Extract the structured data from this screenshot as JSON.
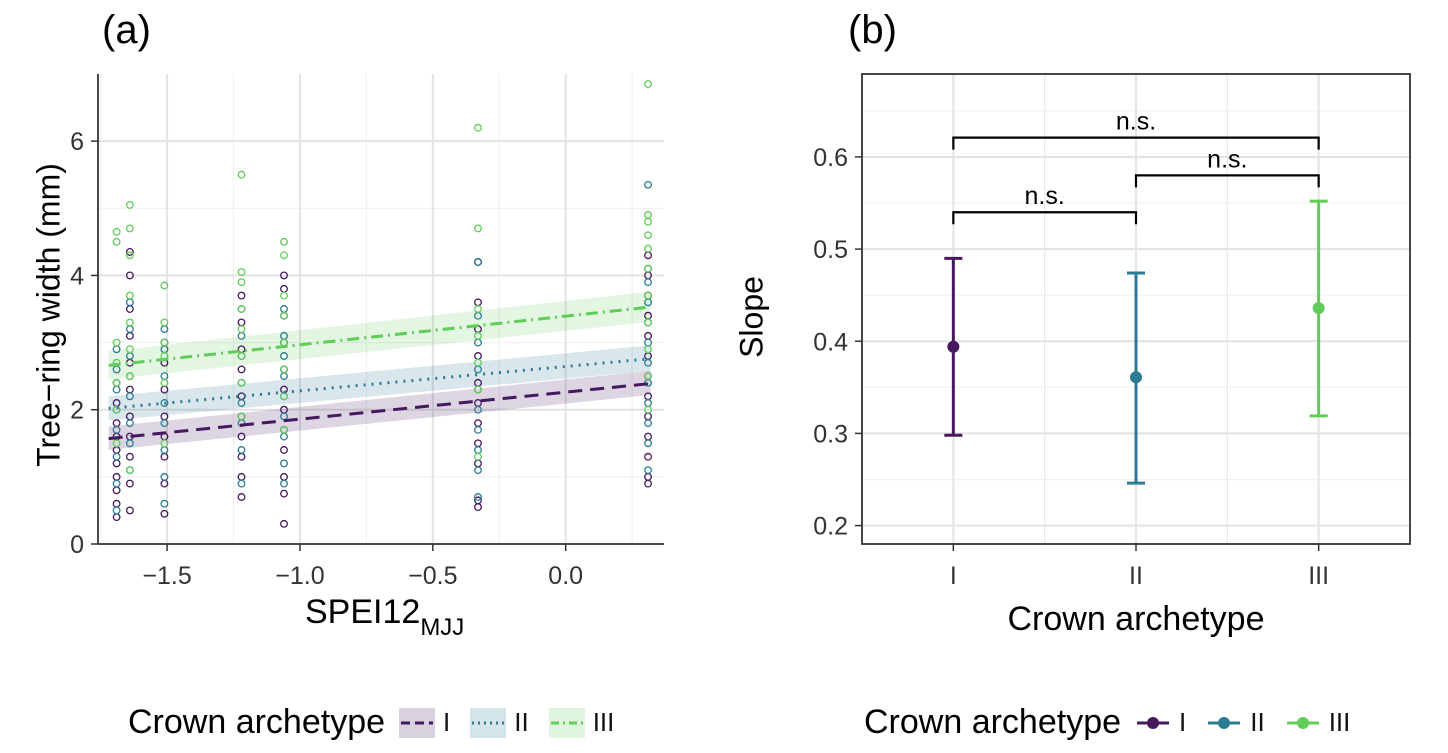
{
  "colors": {
    "I": "#45185f",
    "II": "#2a7b93",
    "III": "#5fcd58"
  },
  "chart_data": [
    {
      "panel_label": "(a)",
      "type": "scatter",
      "xlabel_main": "SPEI12",
      "xlabel_sub": "MJJ",
      "ylabel": "Tree−ring width (mm)",
      "xlim": [
        -1.76,
        0.37
      ],
      "ylim": [
        0,
        7.0
      ],
      "x_ticks": [
        -1.5,
        -1.0,
        -0.5,
        0.0
      ],
      "x_tick_labels": [
        "−1.5",
        "−1.0",
        "−0.5",
        "0.0"
      ],
      "y_ticks": [
        0,
        2,
        4,
        6
      ],
      "y_tick_labels": [
        "0",
        "2",
        "4",
        "6"
      ],
      "grid": true,
      "legend": {
        "title": "Crown archetype",
        "position": "bottom",
        "entries": [
          {
            "label": "I",
            "color": "#45185f",
            "linetype": "dashed"
          },
          {
            "label": "II",
            "color": "#2a7b93",
            "linetype": "dotted"
          },
          {
            "label": "III",
            "color": "#5fcd58",
            "linetype": "dotdash"
          }
        ]
      },
      "series": [
        {
          "name": "I",
          "color": "#45185f",
          "linetype": "dashed",
          "fit": {
            "x": [
              -1.72,
              0.32
            ],
            "y": [
              1.57,
              2.39
            ]
          },
          "ci": {
            "lower": [
              1.4,
              2.22
            ],
            "upper": [
              1.75,
              2.58
            ]
          },
          "points": [
            [
              -1.69,
              0.4
            ],
            [
              -1.69,
              0.6
            ],
            [
              -1.69,
              0.8
            ],
            [
              -1.69,
              1.0
            ],
            [
              -1.69,
              1.2
            ],
            [
              -1.69,
              1.4
            ],
            [
              -1.69,
              1.6
            ],
            [
              -1.69,
              1.8
            ],
            [
              -1.69,
              2.1
            ],
            [
              -1.69,
              2.4
            ],
            [
              -1.64,
              0.5
            ],
            [
              -1.64,
              0.9
            ],
            [
              -1.64,
              1.3
            ],
            [
              -1.64,
              1.6
            ],
            [
              -1.64,
              1.9
            ],
            [
              -1.64,
              2.3
            ],
            [
              -1.64,
              2.7
            ],
            [
              -1.64,
              3.1
            ],
            [
              -1.64,
              3.5
            ],
            [
              -1.64,
              4.0
            ],
            [
              -1.64,
              4.35
            ],
            [
              -1.51,
              0.45
            ],
            [
              -1.51,
              0.9
            ],
            [
              -1.51,
              1.3
            ],
            [
              -1.51,
              1.6
            ],
            [
              -1.51,
              1.9
            ],
            [
              -1.51,
              2.3
            ],
            [
              -1.51,
              2.7
            ],
            [
              -1.51,
              3.0
            ],
            [
              -1.22,
              0.7
            ],
            [
              -1.22,
              1.0
            ],
            [
              -1.22,
              1.3
            ],
            [
              -1.22,
              1.6
            ],
            [
              -1.22,
              1.9
            ],
            [
              -1.22,
              2.2
            ],
            [
              -1.22,
              2.6
            ],
            [
              -1.22,
              2.9
            ],
            [
              -1.22,
              3.3
            ],
            [
              -1.22,
              3.7
            ],
            [
              -1.06,
              0.3
            ],
            [
              -1.06,
              0.75
            ],
            [
              -1.06,
              1.0
            ],
            [
              -1.06,
              1.4
            ],
            [
              -1.06,
              1.7
            ],
            [
              -1.06,
              2.0
            ],
            [
              -1.06,
              2.3
            ],
            [
              -1.06,
              2.6
            ],
            [
              -1.06,
              3.0
            ],
            [
              -1.06,
              3.4
            ],
            [
              -1.06,
              3.8
            ],
            [
              -1.06,
              4.0
            ],
            [
              -0.33,
              0.55
            ],
            [
              -0.33,
              0.65
            ],
            [
              -0.33,
              1.2
            ],
            [
              -0.33,
              1.5
            ],
            [
              -0.33,
              1.8
            ],
            [
              -0.33,
              2.1
            ],
            [
              -0.33,
              2.4
            ],
            [
              -0.33,
              2.8
            ],
            [
              -0.33,
              3.2
            ],
            [
              -0.33,
              3.6
            ],
            [
              -0.33,
              4.2
            ],
            [
              0.31,
              0.9
            ],
            [
              0.31,
              1.0
            ],
            [
              0.31,
              1.3
            ],
            [
              0.31,
              1.6
            ],
            [
              0.31,
              1.9
            ],
            [
              0.31,
              2.2
            ],
            [
              0.31,
              2.5
            ],
            [
              0.31,
              2.8
            ],
            [
              0.31,
              3.1
            ],
            [
              0.31,
              3.4
            ],
            [
              0.31,
              3.7
            ],
            [
              0.31,
              4.0
            ],
            [
              0.31,
              4.3
            ]
          ]
        },
        {
          "name": "II",
          "color": "#2a7b93",
          "linetype": "dotted",
          "fit": {
            "x": [
              -1.72,
              0.32
            ],
            "y": [
              2.02,
              2.76
            ]
          },
          "ci": {
            "lower": [
              1.84,
              2.58
            ],
            "upper": [
              2.2,
              2.96
            ]
          },
          "points": [
            [
              -1.69,
              0.5
            ],
            [
              -1.69,
              0.9
            ],
            [
              -1.69,
              1.3
            ],
            [
              -1.69,
              1.7
            ],
            [
              -1.69,
              2.0
            ],
            [
              -1.69,
              2.3
            ],
            [
              -1.69,
              2.6
            ],
            [
              -1.69,
              2.9
            ],
            [
              -1.64,
              1.1
            ],
            [
              -1.64,
              1.5
            ],
            [
              -1.64,
              1.8
            ],
            [
              -1.64,
              2.2
            ],
            [
              -1.64,
              2.5
            ],
            [
              -1.64,
              2.8
            ],
            [
              -1.64,
              3.2
            ],
            [
              -1.64,
              3.6
            ],
            [
              -1.51,
              0.6
            ],
            [
              -1.51,
              1.0
            ],
            [
              -1.51,
              1.4
            ],
            [
              -1.51,
              1.8
            ],
            [
              -1.51,
              2.1
            ],
            [
              -1.51,
              2.5
            ],
            [
              -1.51,
              2.9
            ],
            [
              -1.51,
              3.2
            ],
            [
              -1.22,
              0.9
            ],
            [
              -1.22,
              1.4
            ],
            [
              -1.22,
              1.8
            ],
            [
              -1.22,
              2.1
            ],
            [
              -1.22,
              2.4
            ],
            [
              -1.22,
              2.8
            ],
            [
              -1.22,
              3.1
            ],
            [
              -1.22,
              3.5
            ],
            [
              -1.06,
              0.9
            ],
            [
              -1.06,
              1.2
            ],
            [
              -1.06,
              1.6
            ],
            [
              -1.06,
              1.9
            ],
            [
              -1.06,
              2.2
            ],
            [
              -1.06,
              2.5
            ],
            [
              -1.06,
              2.8
            ],
            [
              -1.06,
              3.1
            ],
            [
              -1.06,
              3.5
            ],
            [
              -0.33,
              0.7
            ],
            [
              -0.33,
              1.1
            ],
            [
              -0.33,
              1.4
            ],
            [
              -0.33,
              1.7
            ],
            [
              -0.33,
              2.0
            ],
            [
              -0.33,
              2.3
            ],
            [
              -0.33,
              2.6
            ],
            [
              -0.33,
              3.0
            ],
            [
              -0.33,
              3.4
            ],
            [
              -0.33,
              4.2
            ],
            [
              0.31,
              1.1
            ],
            [
              0.31,
              1.5
            ],
            [
              0.31,
              1.8
            ],
            [
              0.31,
              2.1
            ],
            [
              0.31,
              2.4
            ],
            [
              0.31,
              2.7
            ],
            [
              0.31,
              3.0
            ],
            [
              0.31,
              3.3
            ],
            [
              0.31,
              3.6
            ],
            [
              0.31,
              3.9
            ],
            [
              0.31,
              4.1
            ],
            [
              0.31,
              5.35
            ]
          ]
        },
        {
          "name": "III",
          "color": "#5fcd58",
          "linetype": "dotdash",
          "fit": {
            "x": [
              -1.72,
              0.32
            ],
            "y": [
              2.66,
              3.53
            ]
          },
          "ci": {
            "lower": [
              2.45,
              3.31
            ],
            "upper": [
              2.87,
              3.76
            ]
          },
          "points": [
            [
              -1.69,
              1.5
            ],
            [
              -1.69,
              2.0
            ],
            [
              -1.69,
              2.4
            ],
            [
              -1.69,
              2.7
            ],
            [
              -1.69,
              3.0
            ],
            [
              -1.69,
              4.5
            ],
            [
              -1.69,
              4.65
            ],
            [
              -1.64,
              1.1
            ],
            [
              -1.64,
              2.5
            ],
            [
              -1.64,
              2.9
            ],
            [
              -1.64,
              3.3
            ],
            [
              -1.64,
              3.7
            ],
            [
              -1.64,
              4.3
            ],
            [
              -1.64,
              4.7
            ],
            [
              -1.64,
              5.05
            ],
            [
              -1.51,
              1.5
            ],
            [
              -1.51,
              2.4
            ],
            [
              -1.51,
              2.8
            ],
            [
              -1.51,
              3.0
            ],
            [
              -1.51,
              3.3
            ],
            [
              -1.51,
              3.85
            ],
            [
              -1.22,
              1.9
            ],
            [
              -1.22,
              2.4
            ],
            [
              -1.22,
              2.8
            ],
            [
              -1.22,
              3.2
            ],
            [
              -1.22,
              3.5
            ],
            [
              -1.22,
              3.9
            ],
            [
              -1.22,
              4.05
            ],
            [
              -1.22,
              5.5
            ],
            [
              -1.06,
              1.7
            ],
            [
              -1.06,
              2.2
            ],
            [
              -1.06,
              2.6
            ],
            [
              -1.06,
              3.0
            ],
            [
              -1.06,
              3.4
            ],
            [
              -1.06,
              3.7
            ],
            [
              -1.06,
              4.3
            ],
            [
              -1.06,
              4.5
            ],
            [
              -0.33,
              1.3
            ],
            [
              -0.33,
              2.3
            ],
            [
              -0.33,
              2.7
            ],
            [
              -0.33,
              3.1
            ],
            [
              -0.33,
              3.5
            ],
            [
              -0.33,
              4.7
            ],
            [
              -0.33,
              6.2
            ],
            [
              0.31,
              2.0
            ],
            [
              0.31,
              2.5
            ],
            [
              0.31,
              2.9
            ],
            [
              0.31,
              3.3
            ],
            [
              0.31,
              3.7
            ],
            [
              0.31,
              4.1
            ],
            [
              0.31,
              4.4
            ],
            [
              0.31,
              4.6
            ],
            [
              0.31,
              4.8
            ],
            [
              0.31,
              4.9
            ],
            [
              0.31,
              6.85
            ]
          ]
        }
      ]
    },
    {
      "panel_label": "(b)",
      "type": "errorbar",
      "xlabel": "Crown archetype",
      "ylabel": "Slope",
      "categories": [
        "I",
        "II",
        "III"
      ],
      "ylim": [
        0.18,
        0.69
      ],
      "y_ticks": [
        0.2,
        0.3,
        0.4,
        0.5,
        0.6
      ],
      "y_tick_labels": [
        "0.2",
        "0.3",
        "0.4",
        "0.5",
        "0.6"
      ],
      "grid": true,
      "series": [
        {
          "name": "I",
          "color": "#45185f",
          "value": 0.394,
          "lower": 0.298,
          "upper": 0.49
        },
        {
          "name": "II",
          "color": "#2a7b93",
          "value": 0.361,
          "lower": 0.246,
          "upper": 0.474
        },
        {
          "name": "III",
          "color": "#5fcd58",
          "value": 0.436,
          "lower": 0.319,
          "upper": 0.552
        }
      ],
      "brackets": [
        {
          "from": "I",
          "to": "II",
          "y": 0.54,
          "label": "n.s."
        },
        {
          "from": "II",
          "to": "III",
          "y": 0.58,
          "label": "n.s."
        },
        {
          "from": "I",
          "to": "III",
          "y": 0.621,
          "label": "n.s."
        }
      ],
      "legend": {
        "title": "Crown archetype",
        "position": "bottom",
        "entries": [
          {
            "label": "I",
            "color": "#45185f"
          },
          {
            "label": "II",
            "color": "#2a7b93"
          },
          {
            "label": "III",
            "color": "#5fcd58"
          }
        ]
      }
    }
  ]
}
